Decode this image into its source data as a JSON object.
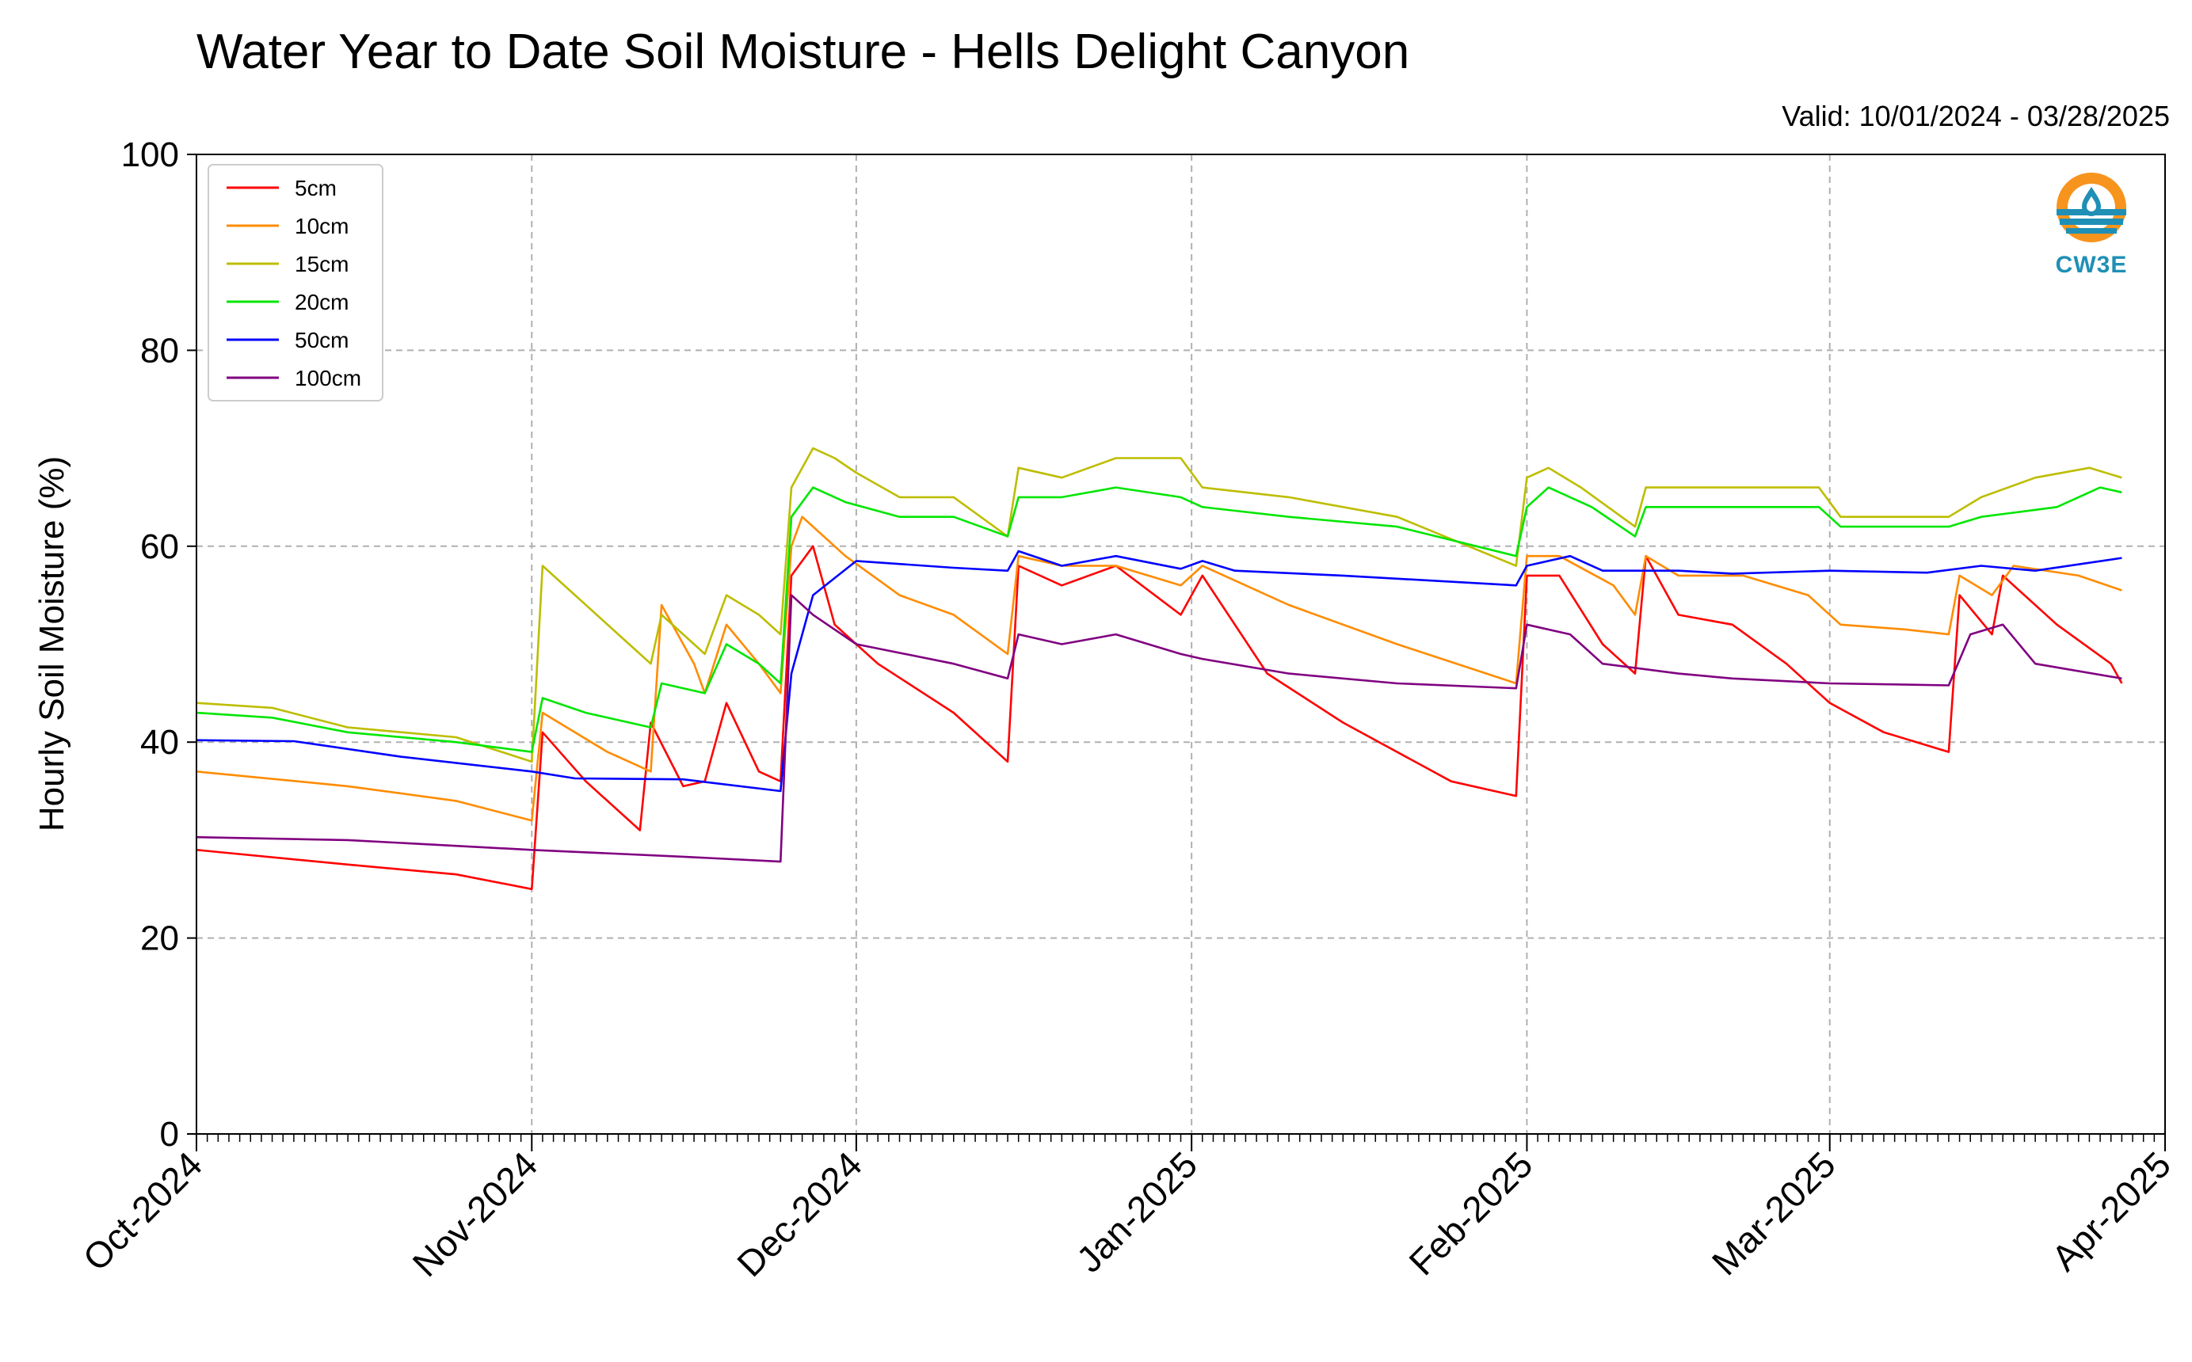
{
  "page": {
    "title": "Water Year to Date Soil Moisture - Hells Delight Canyon",
    "valid": "Valid: 10/01/2024 - 03/28/2025",
    "logo_text": "CW3E"
  },
  "chart_data": {
    "type": "line",
    "title": "Water Year to Date Soil Moisture - Hells Delight Canyon",
    "ylabel": "Hourly Soil Moisture (%)",
    "xlabel": "",
    "ylim": [
      0,
      100
    ],
    "yticks": [
      0,
      20,
      40,
      60,
      80,
      100
    ],
    "xlim": [
      "2024-10-01",
      "2025-04-01"
    ],
    "xticks": [
      {
        "date": "2024-10-01",
        "label": "Oct-2024"
      },
      {
        "date": "2024-11-01",
        "label": "Nov-2024"
      },
      {
        "date": "2024-12-01",
        "label": "Dec-2024"
      },
      {
        "date": "2025-01-01",
        "label": "Jan-2025"
      },
      {
        "date": "2025-02-01",
        "label": "Feb-2025"
      },
      {
        "date": "2025-03-01",
        "label": "Mar-2025"
      },
      {
        "date": "2025-04-01",
        "label": "Apr-2025"
      }
    ],
    "grid": true,
    "legend_position": "top-left",
    "series": [
      {
        "name": "5cm",
        "color": "#ff0000",
        "points": [
          [
            "2024-10-01",
            29
          ],
          [
            "2024-10-15",
            27.5
          ],
          [
            "2024-10-25",
            26.5
          ],
          [
            "2024-11-01",
            25
          ],
          [
            "2024-11-02",
            41
          ],
          [
            "2024-11-06",
            36
          ],
          [
            "2024-11-11",
            31
          ],
          [
            "2024-11-12",
            42
          ],
          [
            "2024-11-15",
            35.5
          ],
          [
            "2024-11-17",
            36
          ],
          [
            "2024-11-19",
            44
          ],
          [
            "2024-11-22",
            37
          ],
          [
            "2024-11-24",
            36
          ],
          [
            "2024-11-25",
            57
          ],
          [
            "2024-11-27",
            60
          ],
          [
            "2024-11-29",
            52
          ],
          [
            "2024-12-03",
            48
          ],
          [
            "2024-12-10",
            43
          ],
          [
            "2024-12-15",
            38
          ],
          [
            "2024-12-16",
            58
          ],
          [
            "2024-12-20",
            56
          ],
          [
            "2024-12-25",
            58
          ],
          [
            "2024-12-31",
            53
          ],
          [
            "2025-01-02",
            57
          ],
          [
            "2025-01-08",
            47
          ],
          [
            "2025-01-15",
            42
          ],
          [
            "2025-01-25",
            36
          ],
          [
            "2025-01-31",
            34.5
          ],
          [
            "2025-02-01",
            57
          ],
          [
            "2025-02-04",
            57
          ],
          [
            "2025-02-08",
            50
          ],
          [
            "2025-02-11",
            47
          ],
          [
            "2025-02-12",
            59
          ],
          [
            "2025-02-15",
            53
          ],
          [
            "2025-02-20",
            52
          ],
          [
            "2025-02-25",
            48
          ],
          [
            "2025-03-01",
            44
          ],
          [
            "2025-03-06",
            41
          ],
          [
            "2025-03-12",
            39
          ],
          [
            "2025-03-13",
            55
          ],
          [
            "2025-03-16",
            51
          ],
          [
            "2025-03-17",
            57
          ],
          [
            "2025-03-22",
            52
          ],
          [
            "2025-03-27",
            48
          ],
          [
            "2025-03-28",
            46
          ]
        ]
      },
      {
        "name": "10cm",
        "color": "#ff8c00",
        "points": [
          [
            "2024-10-01",
            37
          ],
          [
            "2024-10-15",
            35.5
          ],
          [
            "2024-10-25",
            34
          ],
          [
            "2024-11-01",
            32
          ],
          [
            "2024-11-02",
            43
          ],
          [
            "2024-11-08",
            39
          ],
          [
            "2024-11-12",
            37
          ],
          [
            "2024-11-13",
            54
          ],
          [
            "2024-11-16",
            48
          ],
          [
            "2024-11-17",
            45
          ],
          [
            "2024-11-19",
            52
          ],
          [
            "2024-11-22",
            48
          ],
          [
            "2024-11-24",
            45
          ],
          [
            "2024-11-25",
            60
          ],
          [
            "2024-11-26",
            63
          ],
          [
            "2024-11-30",
            59
          ],
          [
            "2024-12-05",
            55
          ],
          [
            "2024-12-10",
            53
          ],
          [
            "2024-12-15",
            49
          ],
          [
            "2024-12-16",
            59
          ],
          [
            "2024-12-20",
            58
          ],
          [
            "2024-12-25",
            58
          ],
          [
            "2024-12-31",
            56
          ],
          [
            "2025-01-02",
            58
          ],
          [
            "2025-01-10",
            54
          ],
          [
            "2025-01-20",
            50
          ],
          [
            "2025-01-31",
            46
          ],
          [
            "2025-02-01",
            59
          ],
          [
            "2025-02-04",
            59
          ],
          [
            "2025-02-09",
            56
          ],
          [
            "2025-02-11",
            53
          ],
          [
            "2025-02-12",
            59
          ],
          [
            "2025-02-15",
            57
          ],
          [
            "2025-02-21",
            57
          ],
          [
            "2025-02-27",
            55
          ],
          [
            "2025-03-02",
            52
          ],
          [
            "2025-03-08",
            51.5
          ],
          [
            "2025-03-12",
            51
          ],
          [
            "2025-03-13",
            57
          ],
          [
            "2025-03-16",
            55
          ],
          [
            "2025-03-18",
            58
          ],
          [
            "2025-03-24",
            57
          ],
          [
            "2025-03-28",
            55.5
          ]
        ]
      },
      {
        "name": "15cm",
        "color": "#bdbd00",
        "points": [
          [
            "2024-10-01",
            44
          ],
          [
            "2024-10-08",
            43.5
          ],
          [
            "2024-10-15",
            41.5
          ],
          [
            "2024-10-25",
            40.5
          ],
          [
            "2024-11-01",
            38
          ],
          [
            "2024-11-02",
            58
          ],
          [
            "2024-11-05",
            55
          ],
          [
            "2024-11-10",
            50
          ],
          [
            "2024-11-12",
            48
          ],
          [
            "2024-11-13",
            53
          ],
          [
            "2024-11-16",
            50
          ],
          [
            "2024-11-17",
            49
          ],
          [
            "2024-11-19",
            55
          ],
          [
            "2024-11-22",
            53
          ],
          [
            "2024-11-24",
            51
          ],
          [
            "2024-11-25",
            66
          ],
          [
            "2024-11-27",
            70
          ],
          [
            "2024-11-29",
            69
          ],
          [
            "2024-12-01",
            67.5
          ],
          [
            "2024-12-05",
            65
          ],
          [
            "2024-12-10",
            65
          ],
          [
            "2024-12-15",
            61
          ],
          [
            "2024-12-16",
            68
          ],
          [
            "2024-12-20",
            67
          ],
          [
            "2024-12-25",
            69
          ],
          [
            "2024-12-31",
            69
          ],
          [
            "2025-01-02",
            66
          ],
          [
            "2025-01-10",
            65
          ],
          [
            "2025-01-20",
            63
          ],
          [
            "2025-01-31",
            58
          ],
          [
            "2025-02-01",
            67
          ],
          [
            "2025-02-03",
            68
          ],
          [
            "2025-02-06",
            66
          ],
          [
            "2025-02-11",
            62
          ],
          [
            "2025-02-12",
            66
          ],
          [
            "2025-02-20",
            66
          ],
          [
            "2025-02-28",
            66
          ],
          [
            "2025-03-02",
            63
          ],
          [
            "2025-03-12",
            63
          ],
          [
            "2025-03-15",
            65
          ],
          [
            "2025-03-20",
            67
          ],
          [
            "2025-03-25",
            68
          ],
          [
            "2025-03-28",
            67
          ]
        ]
      },
      {
        "name": "20cm",
        "color": "#00e600",
        "points": [
          [
            "2024-10-01",
            43
          ],
          [
            "2024-10-08",
            42.5
          ],
          [
            "2024-10-15",
            41
          ],
          [
            "2024-10-25",
            40
          ],
          [
            "2024-11-01",
            39
          ],
          [
            "2024-11-02",
            44.5
          ],
          [
            "2024-11-06",
            43
          ],
          [
            "2024-11-12",
            41.5
          ],
          [
            "2024-11-13",
            46
          ],
          [
            "2024-11-17",
            45
          ],
          [
            "2024-11-19",
            50
          ],
          [
            "2024-11-22",
            48
          ],
          [
            "2024-11-24",
            46
          ],
          [
            "2024-11-25",
            63
          ],
          [
            "2024-11-27",
            66
          ],
          [
            "2024-11-30",
            64.5
          ],
          [
            "2024-12-05",
            63
          ],
          [
            "2024-12-10",
            63
          ],
          [
            "2024-12-15",
            61
          ],
          [
            "2024-12-16",
            65
          ],
          [
            "2024-12-20",
            65
          ],
          [
            "2024-12-25",
            66
          ],
          [
            "2024-12-31",
            65
          ],
          [
            "2025-01-02",
            64
          ],
          [
            "2025-01-10",
            63
          ],
          [
            "2025-01-20",
            62
          ],
          [
            "2025-01-31",
            59
          ],
          [
            "2025-02-01",
            64
          ],
          [
            "2025-02-03",
            66
          ],
          [
            "2025-02-07",
            64
          ],
          [
            "2025-02-11",
            61
          ],
          [
            "2025-02-12",
            64
          ],
          [
            "2025-02-20",
            64
          ],
          [
            "2025-02-28",
            64
          ],
          [
            "2025-03-02",
            62
          ],
          [
            "2025-03-12",
            62
          ],
          [
            "2025-03-15",
            63
          ],
          [
            "2025-03-22",
            64
          ],
          [
            "2025-03-26",
            66
          ],
          [
            "2025-03-28",
            65.5
          ]
        ]
      },
      {
        "name": "50cm",
        "color": "#0000ff",
        "points": [
          [
            "2024-10-01",
            40.2
          ],
          [
            "2024-10-10",
            40.1
          ],
          [
            "2024-10-20",
            38.5
          ],
          [
            "2024-11-01",
            37
          ],
          [
            "2024-11-05",
            36.3
          ],
          [
            "2024-11-15",
            36.2
          ],
          [
            "2024-11-24",
            35
          ],
          [
            "2024-11-25",
            47
          ],
          [
            "2024-11-27",
            55
          ],
          [
            "2024-12-01",
            58.5
          ],
          [
            "2024-12-10",
            57.8
          ],
          [
            "2024-12-15",
            57.5
          ],
          [
            "2024-12-16",
            59.5
          ],
          [
            "2024-12-20",
            58
          ],
          [
            "2024-12-25",
            59
          ],
          [
            "2024-12-31",
            57.7
          ],
          [
            "2025-01-02",
            58.5
          ],
          [
            "2025-01-05",
            57.5
          ],
          [
            "2025-01-15",
            57
          ],
          [
            "2025-01-31",
            56
          ],
          [
            "2025-02-01",
            58
          ],
          [
            "2025-02-05",
            59
          ],
          [
            "2025-02-08",
            57.5
          ],
          [
            "2025-02-15",
            57.5
          ],
          [
            "2025-02-20",
            57.2
          ],
          [
            "2025-03-01",
            57.5
          ],
          [
            "2025-03-10",
            57.3
          ],
          [
            "2025-03-15",
            58
          ],
          [
            "2025-03-20",
            57.5
          ],
          [
            "2025-03-28",
            58.8
          ]
        ]
      },
      {
        "name": "100cm",
        "color": "#800080",
        "points": [
          [
            "2024-10-01",
            30.3
          ],
          [
            "2024-10-15",
            30
          ],
          [
            "2024-11-01",
            29
          ],
          [
            "2024-11-15",
            28.3
          ],
          [
            "2024-11-24",
            27.8
          ],
          [
            "2024-11-25",
            55
          ],
          [
            "2024-11-27",
            53
          ],
          [
            "2024-12-01",
            50
          ],
          [
            "2024-12-10",
            48
          ],
          [
            "2024-12-15",
            46.5
          ],
          [
            "2024-12-16",
            51
          ],
          [
            "2024-12-20",
            50
          ],
          [
            "2024-12-25",
            51
          ],
          [
            "2024-12-31",
            49
          ],
          [
            "2025-01-02",
            48.5
          ],
          [
            "2025-01-10",
            47
          ],
          [
            "2025-01-20",
            46
          ],
          [
            "2025-01-31",
            45.5
          ],
          [
            "2025-02-01",
            52
          ],
          [
            "2025-02-05",
            51
          ],
          [
            "2025-02-08",
            48
          ],
          [
            "2025-02-15",
            47
          ],
          [
            "2025-02-20",
            46.5
          ],
          [
            "2025-03-01",
            46
          ],
          [
            "2025-03-12",
            45.8
          ],
          [
            "2025-03-14",
            51
          ],
          [
            "2025-03-17",
            52
          ],
          [
            "2025-03-20",
            48
          ],
          [
            "2025-03-28",
            46.5
          ]
        ]
      }
    ]
  }
}
